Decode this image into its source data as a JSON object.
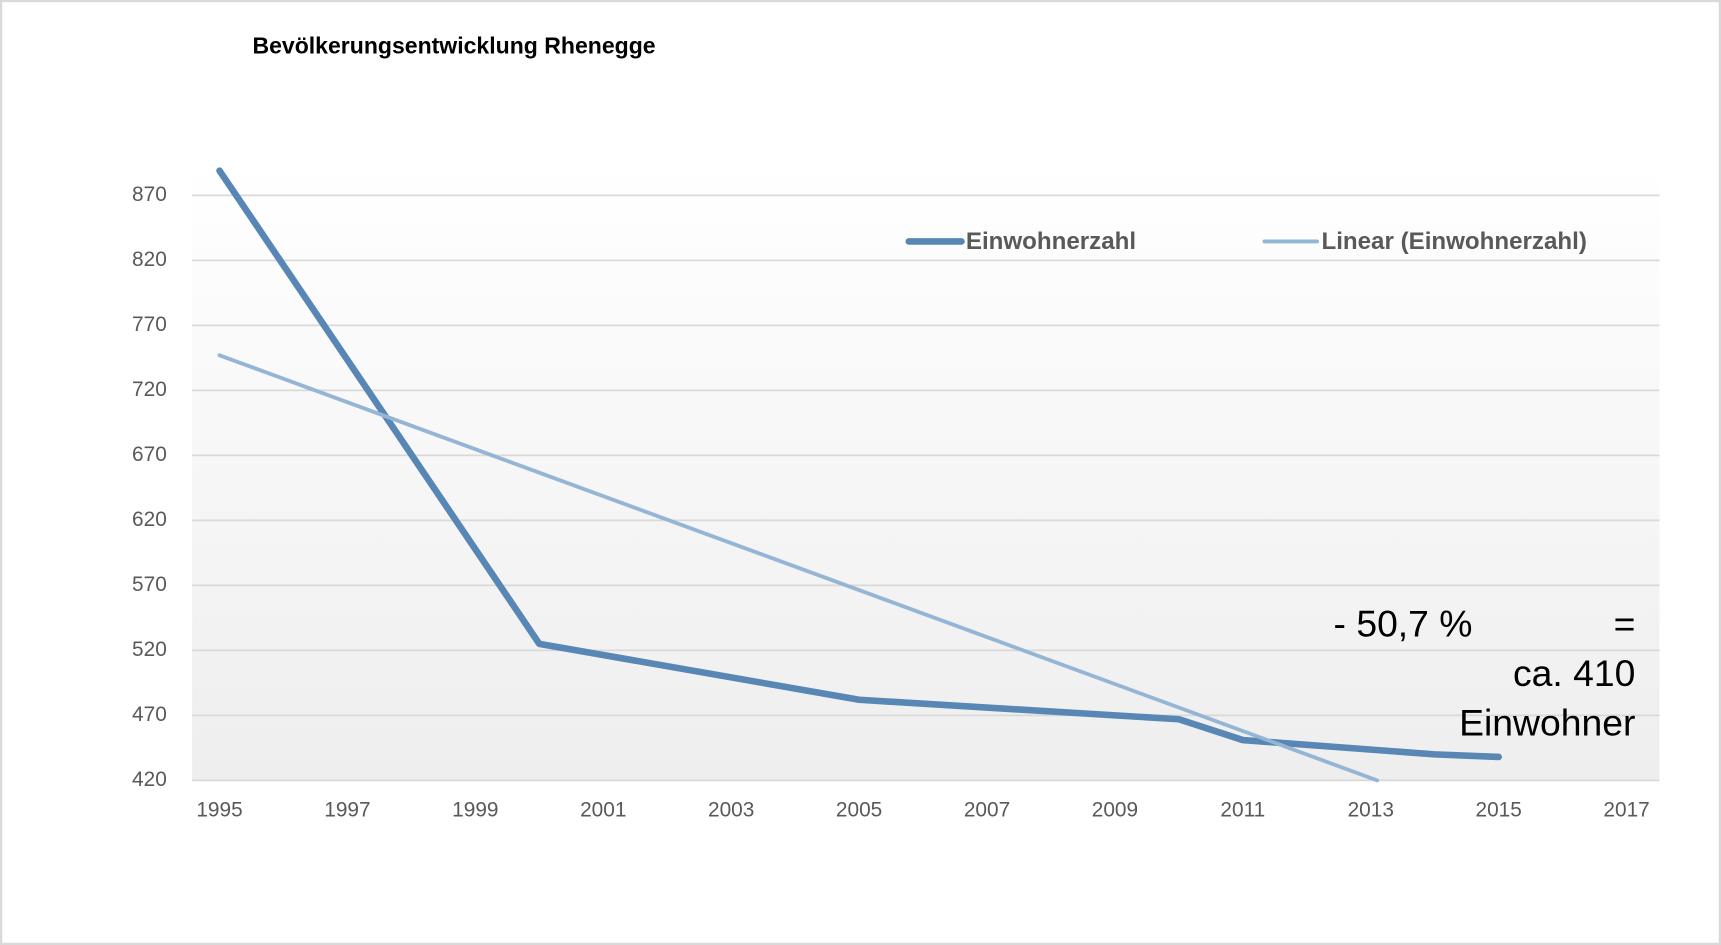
{
  "chart_data": {
    "type": "line",
    "title": "Bevölkerungsentwicklung Rhenegge",
    "xlim": [
      1995,
      2017
    ],
    "xticks": [
      1995,
      1997,
      1999,
      2001,
      2003,
      2005,
      2007,
      2009,
      2011,
      2013,
      2015,
      2017
    ],
    "ylim": [
      420,
      870
    ],
    "yticks": [
      420,
      470,
      520,
      570,
      620,
      670,
      720,
      770,
      820,
      870
    ],
    "grid": true,
    "legend": "top-right",
    "series": [
      {
        "name": "Einwohnerzahl",
        "color": "#5886b5",
        "x": [
          1995,
          2000,
          2005,
          2010,
          2011,
          2014,
          2015
        ],
        "values": [
          889,
          525,
          482,
          467,
          451,
          440,
          438
        ]
      },
      {
        "name": "Linear (Einwohnerzahl)",
        "color": "#94b6d4",
        "x": [
          1995,
          2013.1
        ],
        "values": [
          747,
          420
        ]
      }
    ],
    "annotation": [
      "- 50,7 %",
      "=",
      "ca. 410",
      "Einwohner"
    ]
  }
}
